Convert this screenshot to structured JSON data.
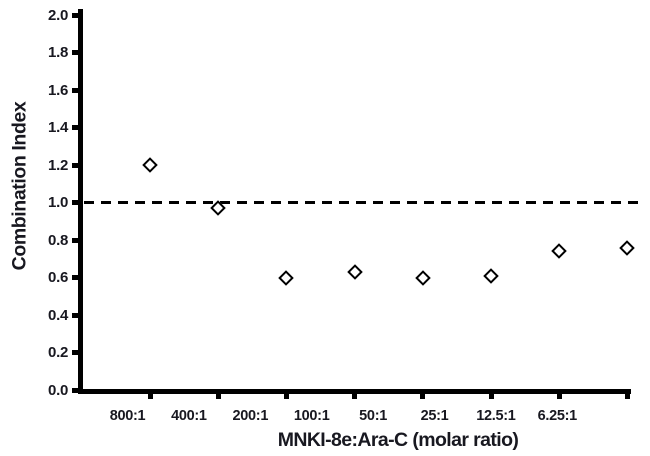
{
  "chart_data": {
    "type": "scatter",
    "title": "",
    "xlabel": "MNKI-8e:Ara-C (molar ratio)",
    "ylabel": "Combination Index",
    "categories": [
      "800:1",
      "400:1",
      "200:1",
      "100:1",
      "50:1",
      "25:1",
      "12.5:1",
      "6.25:1"
    ],
    "series": [
      {
        "name": "Combination Index",
        "values": [
          1.2,
          0.97,
          0.6,
          0.63,
          0.6,
          0.61,
          0.74,
          0.76
        ]
      }
    ],
    "ylim": [
      0.0,
      2.0
    ],
    "y_ticks": [
      0.0,
      0.2,
      0.4,
      0.6,
      0.8,
      1.0,
      1.2,
      1.4,
      1.6,
      1.8,
      2.0
    ],
    "y_tick_labels": [
      "0.0",
      "0.2",
      "0.4",
      "0.6",
      "0.8",
      "1.0",
      "1.2",
      "1.4",
      "1.6",
      "1.8",
      "2.0"
    ],
    "reference_line": {
      "value": 1.0,
      "style": "dashed",
      "color": "#000000"
    },
    "marker": {
      "shape": "open-diamond",
      "stroke": "#000000",
      "fill": "#ffffff"
    },
    "grid": false,
    "legend": "none"
  },
  "colors": {
    "background": "#ffffff",
    "axis": "#000000",
    "text": "#181820",
    "marker_stroke": "#000000",
    "marker_fill": "#ffffff",
    "reference_line": "#000000"
  }
}
